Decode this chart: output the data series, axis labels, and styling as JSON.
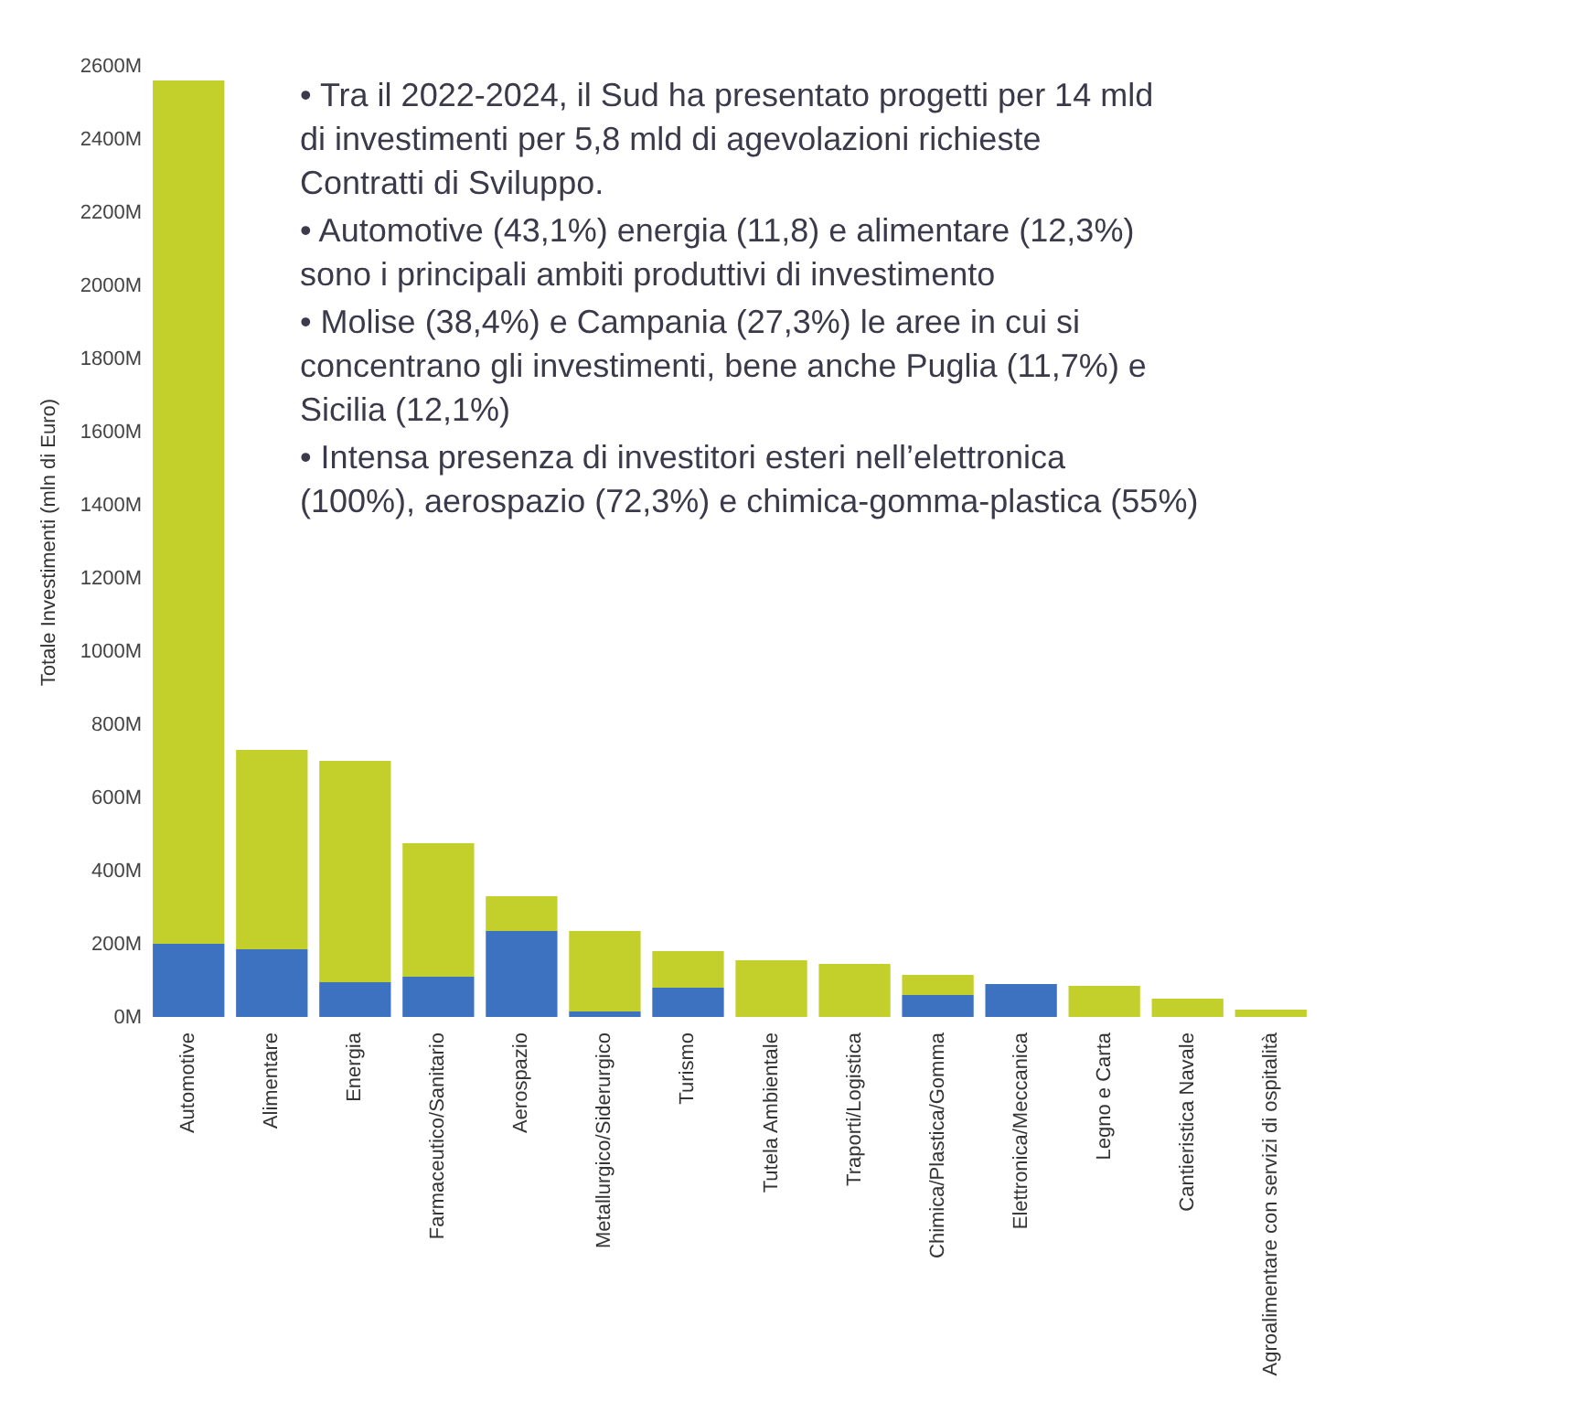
{
  "chart_data": {
    "type": "bar",
    "stacked": true,
    "ylabel": "Totale Investimenti (mln di Euro)",
    "categories": [
      "Automotive",
      "Alimentare",
      "Energia",
      "Farmaceutico/Sanitario",
      "Aerospazio",
      "Metallurgico/Siderurgico",
      "Turismo",
      "Tutela Ambientale",
      "Traporti/Logistica",
      "Chimica/Plastica/Gomma",
      "Elettronica/Meccanica",
      "Legno e Carta",
      "Cantieristica Navale",
      "Agroalimentare con servizi di ospitalità"
    ],
    "series": [
      {
        "color": "#3d72c0",
        "values": [
          200,
          185,
          95,
          110,
          235,
          15,
          80,
          0,
          0,
          60,
          90,
          0,
          0,
          0
        ]
      },
      {
        "color": "#c3cf2b",
        "values": [
          2360,
          545,
          605,
          365,
          95,
          220,
          100,
          155,
          145,
          55,
          0,
          85,
          50,
          20
        ]
      }
    ],
    "ylim": [
      0,
      2600
    ],
    "yticks": [
      {
        "value": 0,
        "label": "0M"
      },
      {
        "value": 200,
        "label": "200M"
      },
      {
        "value": 400,
        "label": "400M"
      },
      {
        "value": 600,
        "label": "600M"
      },
      {
        "value": 800,
        "label": "800M"
      },
      {
        "value": 1000,
        "label": "1000M"
      },
      {
        "value": 1200,
        "label": "1200M"
      },
      {
        "value": 1400,
        "label": "1400M"
      },
      {
        "value": 1600,
        "label": "1600M"
      },
      {
        "value": 1800,
        "label": "1800M"
      },
      {
        "value": 2000,
        "label": "2000M"
      },
      {
        "value": 2200,
        "label": "2200M"
      },
      {
        "value": 2400,
        "label": "2400M"
      },
      {
        "value": 2600,
        "label": "2600M"
      }
    ],
    "annotations": [
      "• Tra il 2022-2024, il Sud ha presentato progetti per 14 mld di investimenti  per 5,8 mld di agevolazioni richieste Contratti di Sviluppo.",
      "• Automotive (43,1%) energia (11,8) e alimentare (12,3%) sono i principali ambiti produttivi di investimento",
      "• Molise (38,4%) e Campania (27,3%) le aree in cui si concentrano gli investimenti, bene anche Puglia (11,7%) e Sicilia (12,1%)",
      "• Intensa presenza di investitori esteri nell’elettronica (100%), aerospazio (72,3%) e chimica-gomma-plastica (55%)"
    ]
  }
}
